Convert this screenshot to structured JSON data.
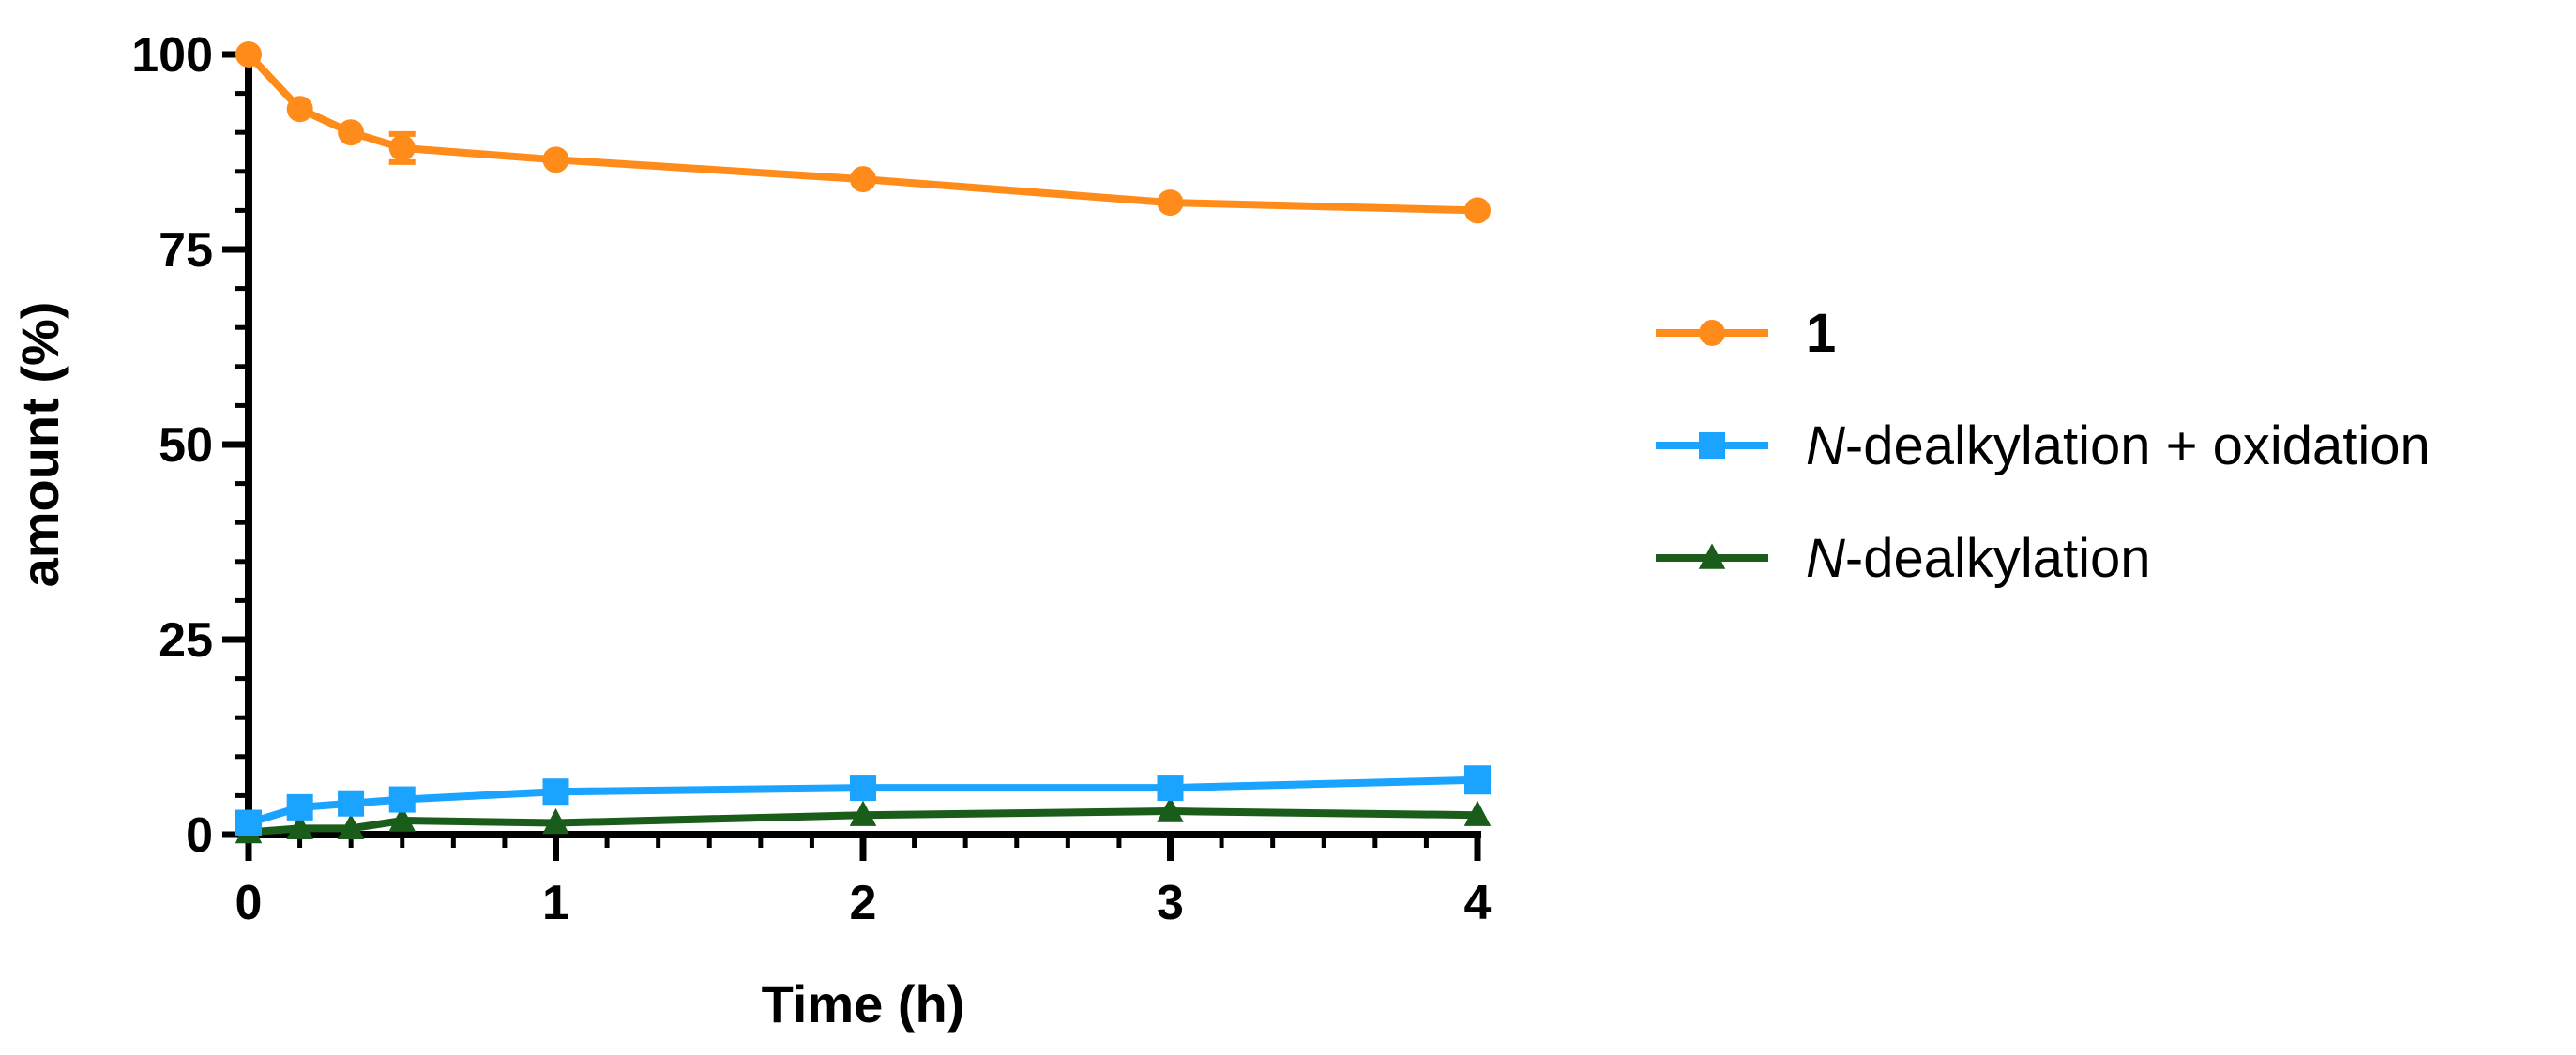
{
  "chart_data": {
    "type": "line",
    "xlabel": "Time (h)",
    "ylabel": "amount (%)",
    "xlim": [
      0,
      4
    ],
    "ylim": [
      0,
      100
    ],
    "x_ticks": [
      "0",
      "1",
      "2",
      "3",
      "4"
    ],
    "y_ticks": [
      "0",
      "25",
      "50",
      "75",
      "100"
    ],
    "grid": false,
    "legend_position": "right",
    "series": [
      {
        "name": "1",
        "name_style": "bold",
        "color": "#ff8c1a",
        "marker": "circle",
        "x": [
          0,
          0.167,
          0.333,
          0.5,
          1,
          2,
          3,
          4
        ],
        "y": [
          100,
          93,
          90,
          88,
          86.5,
          84,
          81,
          80
        ],
        "error": [
          0,
          0,
          0,
          1.8,
          0,
          0,
          0,
          0
        ]
      },
      {
        "name": "N-dealkylation + oxidation",
        "name_italic_prefix": "N",
        "name_rest": "-dealkylation + oxidation",
        "color": "#1aa3ff",
        "marker": "square",
        "x": [
          0,
          0.167,
          0.333,
          0.5,
          1,
          2,
          3,
          4
        ],
        "y": [
          1.5,
          3.5,
          4,
          4.5,
          5.5,
          6,
          6,
          7
        ],
        "error": [
          0,
          0,
          0,
          0,
          0,
          1.2,
          0,
          1.5
        ]
      },
      {
        "name": "N-dealkylation",
        "name_italic_prefix": "N",
        "name_rest": "-dealkylation",
        "color": "#1a5c1a",
        "marker": "triangle",
        "x": [
          0,
          0.167,
          0.333,
          0.5,
          1,
          2,
          3,
          4
        ],
        "y": [
          0.3,
          0.8,
          0.8,
          1.8,
          1.5,
          2.5,
          3,
          2.5
        ],
        "error": [
          0,
          0,
          0,
          0,
          0,
          0,
          0,
          0
        ]
      }
    ]
  }
}
